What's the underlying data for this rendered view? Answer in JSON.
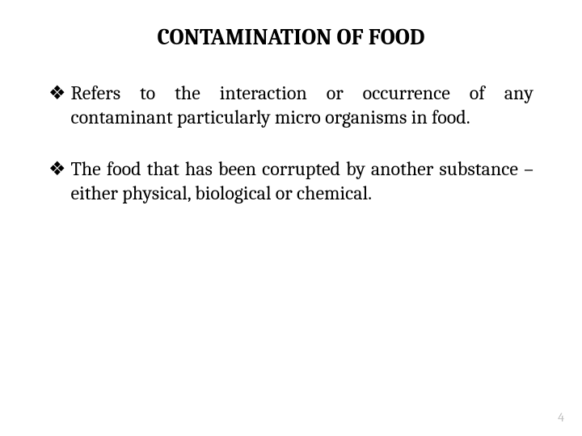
{
  "slide": {
    "title": "CONTAMINATION OF FOOD",
    "title_fontsize": 28,
    "title_fontweight": "bold",
    "title_color": "#000000",
    "background_color": "#ffffff",
    "bullets": [
      {
        "marker": "❖",
        "text": "Refers to the interaction or occurrence of any contaminant particularly micro organisms in food."
      },
      {
        "marker": "❖",
        "text": "The food that has been corrupted by another substance – either physical, biological or chemical."
      }
    ],
    "bullet_fontsize": 24,
    "bullet_color": "#000000",
    "bullet_marker_color": "#000000",
    "page_number": "4",
    "page_number_fontsize": 16,
    "page_number_color": "#bfbfbf"
  }
}
